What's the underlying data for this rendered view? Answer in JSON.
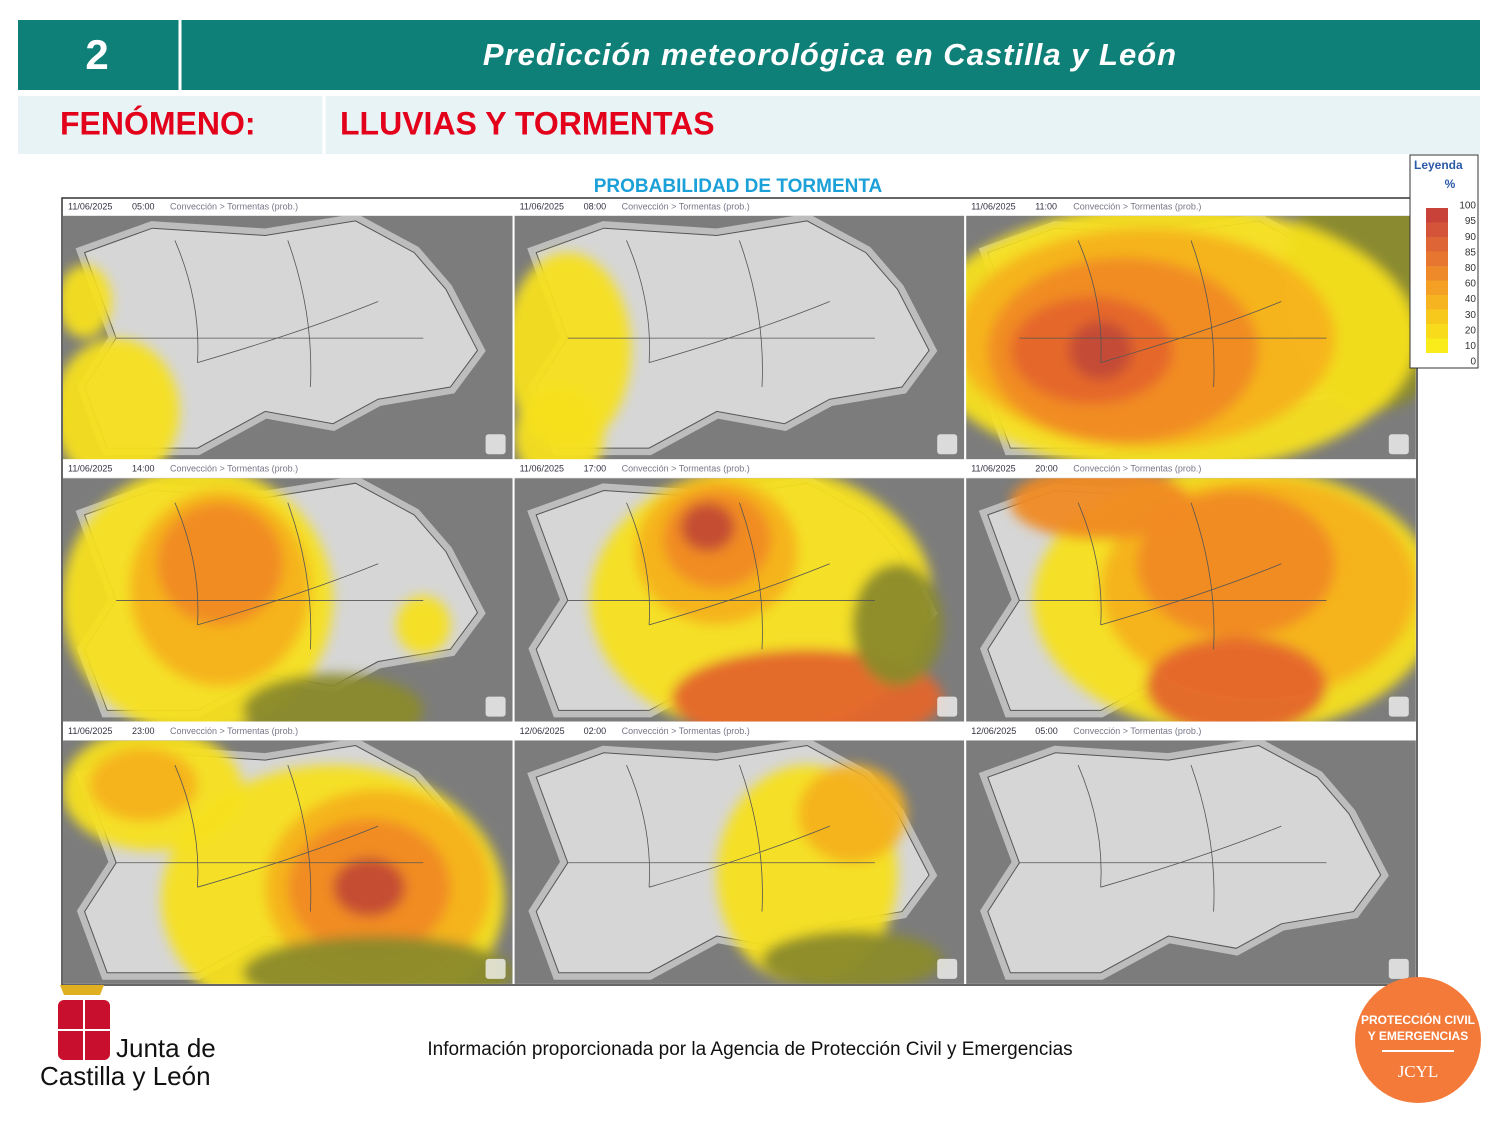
{
  "header": {
    "number": "2",
    "title": "Predicción meteorológica en Castilla y León"
  },
  "phenomenon": {
    "label": "FENÓMENO:",
    "value": "LLUVIAS Y TORMENTAS"
  },
  "maps": {
    "title": "PROBABILIDAD DE TORMENTA",
    "panels": [
      {
        "date": "11/06/2025",
        "time": "05:00",
        "layer": "Convección > Tormentas (prob.)"
      },
      {
        "date": "11/06/2025",
        "time": "08:00",
        "layer": "Convección > Tormentas (prob.)"
      },
      {
        "date": "11/06/2025",
        "time": "11:00",
        "layer": "Convección > Tormentas (prob.)"
      },
      {
        "date": "11/06/2025",
        "time": "14:00",
        "layer": "Convección > Tormentas (prob.)"
      },
      {
        "date": "11/06/2025",
        "time": "17:00",
        "layer": "Convección > Tormentas (prob.)"
      },
      {
        "date": "11/06/2025",
        "time": "20:00",
        "layer": "Convección > Tormentas (prob.)"
      },
      {
        "date": "11/06/2025",
        "time": "23:00",
        "layer": "Convección > Tormentas (prob.)"
      },
      {
        "date": "12/06/2025",
        "time": "02:00",
        "layer": "Convección > Tormentas (prob.)"
      },
      {
        "date": "12/06/2025",
        "time": "05:00",
        "layer": "Convección > Tormentas (prob.)"
      }
    ]
  },
  "legend": {
    "title": "Leyenda",
    "unit": "%",
    "ticks": [
      "100",
      "95",
      "90",
      "85",
      "80",
      "60",
      "40",
      "30",
      "20",
      "10",
      "0"
    ]
  },
  "footer": {
    "source": "Información proporcionada por la Agencia de Protección Civil y Emergencias",
    "logo_left": [
      "Junta de",
      "Castilla y León"
    ],
    "logo_right": [
      "PROTECCIÓN CIVIL",
      "Y EMERGENCIAS",
      "JCYL"
    ]
  }
}
